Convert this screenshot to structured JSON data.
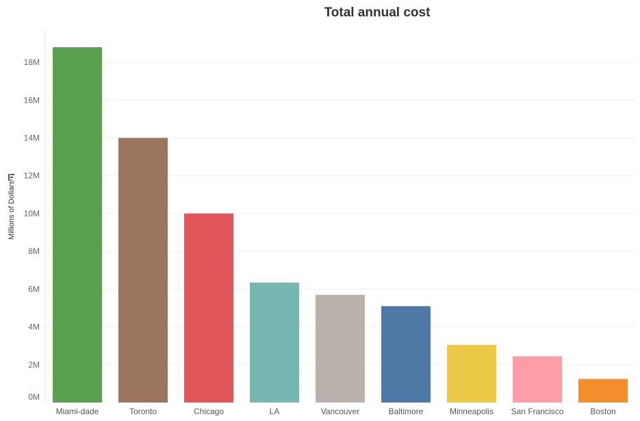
{
  "chart_data": {
    "type": "bar",
    "title": "Total annual cost",
    "xlabel": "",
    "ylabel": "Millions of Dollars",
    "ylim": [
      0,
      19000000
    ],
    "yticks": [
      0,
      2000000,
      4000000,
      6000000,
      8000000,
      10000000,
      12000000,
      14000000,
      16000000,
      18000000
    ],
    "ytick_labels": [
      "0M",
      "2M",
      "4M",
      "6M",
      "8M",
      "10M",
      "12M",
      "14M",
      "16M",
      "18M"
    ],
    "grid": true,
    "categories": [
      "Miami-dade",
      "Toronto",
      "Chicago",
      "LA",
      "Vancouver",
      "Baltimore",
      "Minneapolis",
      "San Francisco",
      "Boston"
    ],
    "values": [
      18800000,
      14000000,
      10000000,
      6350000,
      5700000,
      5100000,
      3050000,
      2450000,
      1250000
    ],
    "colors": [
      "#59A14F",
      "#9C755F",
      "#E15759",
      "#76B7B2",
      "#BAB0AC",
      "#4E79A7",
      "#EDC948",
      "#FF9DA7",
      "#F28E2B"
    ]
  }
}
